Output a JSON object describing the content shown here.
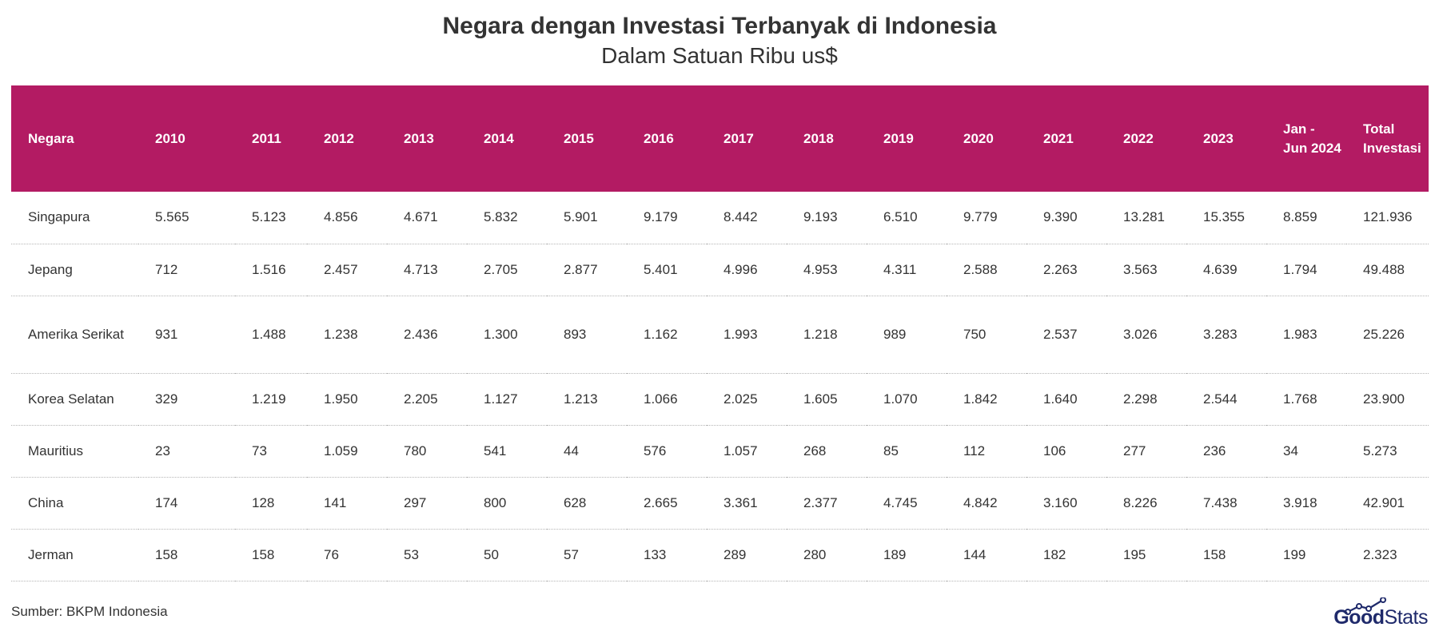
{
  "chart_data": {
    "type": "table",
    "title": "Negara dengan Investasi Terbanyak di Indonesia",
    "subtitle": "Dalam Satuan Ribu us$",
    "columns": [
      "Negara",
      "2010",
      "2011",
      "2012",
      "2013",
      "2014",
      "2015",
      "2016",
      "2017",
      "2018",
      "2019",
      "2020",
      "2021",
      "2022",
      "2023",
      "Jan - Jun 2024",
      "Total Investasi"
    ],
    "rows": [
      [
        "Singapura",
        "5.565",
        "5.123",
        "4.856",
        "4.671",
        "5.832",
        "5.901",
        "9.179",
        "8.442",
        "9.193",
        "6.510",
        "9.779",
        "9.390",
        "13.281",
        "15.355",
        "8.859",
        "121.936"
      ],
      [
        "Jepang",
        "712",
        "1.516",
        "2.457",
        "4.713",
        "2.705",
        "2.877",
        "5.401",
        "4.996",
        "4.953",
        "4.311",
        "2.588",
        "2.263",
        "3.563",
        "4.639",
        "1.794",
        "49.488"
      ],
      [
        "Amerika Serikat",
        "931",
        "1.488",
        "1.238",
        "2.436",
        "1.300",
        "893",
        "1.162",
        "1.993",
        "1.218",
        "989",
        "750",
        "2.537",
        "3.026",
        "3.283",
        "1.983",
        "25.226"
      ],
      [
        "Korea Selatan",
        "329",
        "1.219",
        "1.950",
        "2.205",
        "1.127",
        "1.213",
        "1.066",
        "2.025",
        "1.605",
        "1.070",
        "1.842",
        "1.640",
        "2.298",
        "2.544",
        "1.768",
        "23.900"
      ],
      [
        "Mauritius",
        "23",
        "73",
        "1.059",
        "780",
        "541",
        "44",
        "576",
        "1.057",
        "268",
        "85",
        "112",
        "106",
        "277",
        "236",
        "34",
        "5.273"
      ],
      [
        "China",
        "174",
        "128",
        "141",
        "297",
        "800",
        "628",
        "2.665",
        "3.361",
        "2.377",
        "4.745",
        "4.842",
        "3.160",
        "8.226",
        "7.438",
        "3.918",
        "42.901"
      ],
      [
        "Jerman",
        "158",
        "158",
        "76",
        "53",
        "50",
        "57",
        "133",
        "289",
        "280",
        "189",
        "144",
        "182",
        "195",
        "158",
        "199",
        "2.323"
      ]
    ]
  },
  "footer": {
    "source": "Sumber: BKPM Indonesia",
    "logo_part1": "Good",
    "logo_part2": "Stats"
  },
  "colors": {
    "header_bg": "#b31b63",
    "header_text": "#ffffff",
    "logo": "#1f2a6b"
  }
}
